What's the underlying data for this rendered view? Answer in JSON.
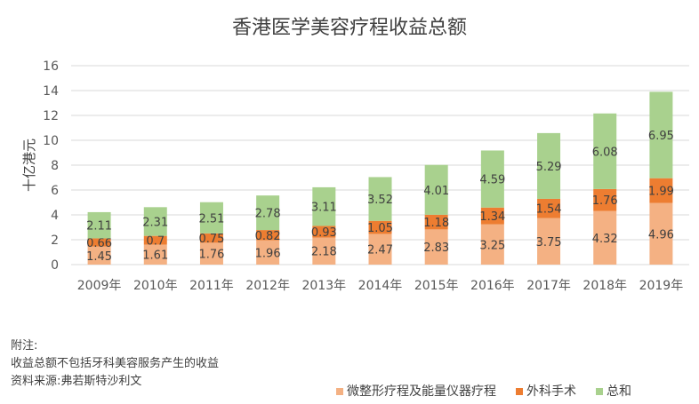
{
  "chart_data": {
    "type": "bar",
    "stacked": true,
    "title": "香港医学美容疗程收益总额",
    "ylabel": "十亿港元",
    "xlabel": "",
    "ylim": [
      0,
      16
    ],
    "yticks": [
      0,
      2,
      4,
      6,
      8,
      10,
      12,
      14,
      16
    ],
    "grid": true,
    "legend": "bottom-right",
    "categories": [
      "2009年",
      "2010年",
      "2011年",
      "2012年",
      "2013年",
      "2014年",
      "2015年",
      "2016年",
      "2017年",
      "2018年",
      "2019年"
    ],
    "series": [
      {
        "name": "微整形疗程及能量仪器疗程",
        "color": "#F4B183",
        "values": [
          1.45,
          1.61,
          1.76,
          1.96,
          2.18,
          2.47,
          2.83,
          3.25,
          3.75,
          4.32,
          4.96
        ]
      },
      {
        "name": "外科手术",
        "color": "#ED7D31",
        "values": [
          0.66,
          0.7,
          0.75,
          0.82,
          0.93,
          1.05,
          1.18,
          1.34,
          1.54,
          1.76,
          1.99
        ]
      },
      {
        "name": "总和",
        "color": "#A9D18E",
        "values": [
          2.11,
          2.31,
          2.51,
          2.78,
          3.11,
          3.52,
          4.01,
          4.59,
          5.29,
          6.08,
          6.95
        ]
      }
    ]
  },
  "notes": {
    "heading": "附注:",
    "line1": "收益总额不包括牙科美容服务产生的收益",
    "source": "资料来源:弗若斯特沙利文"
  }
}
